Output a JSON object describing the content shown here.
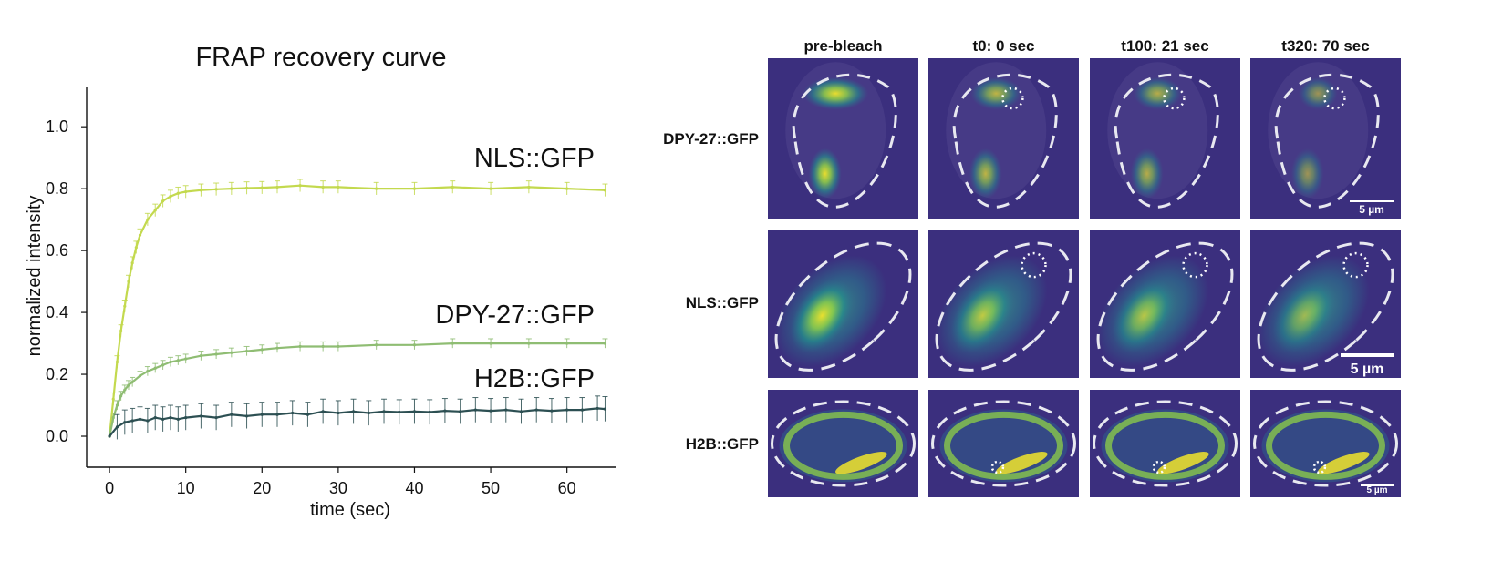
{
  "chart_data": {
    "type": "line",
    "title": "FRAP recovery curve",
    "xlabel": "time (sec)",
    "ylabel": "normalized intensity",
    "xlim": [
      -3,
      66.5
    ],
    "ylim": [
      -0.1,
      1.13
    ],
    "xticks": [
      0,
      10,
      20,
      30,
      40,
      50,
      60
    ],
    "yticks": [
      "0.0",
      "0.2",
      "0.4",
      "0.6",
      "0.8",
      "1.0"
    ],
    "grid": false,
    "legend": "none",
    "series": [
      {
        "name": "NLS::GFP",
        "color": "#c3d94e",
        "x": [
          0,
          0.5,
          1,
          1.5,
          2,
          2.5,
          3,
          3.5,
          4,
          5,
          6,
          7,
          8,
          9,
          10,
          12,
          14,
          16,
          18,
          20,
          22,
          25,
          28,
          30,
          35,
          40,
          45,
          50,
          55,
          60,
          65
        ],
        "y": [
          0.0,
          0.12,
          0.24,
          0.34,
          0.42,
          0.5,
          0.56,
          0.61,
          0.65,
          0.7,
          0.73,
          0.76,
          0.775,
          0.785,
          0.79,
          0.795,
          0.798,
          0.8,
          0.802,
          0.803,
          0.805,
          0.81,
          0.805,
          0.805,
          0.8,
          0.8,
          0.805,
          0.8,
          0.805,
          0.8,
          0.795
        ],
        "err": 0.02
      },
      {
        "name": "DPY-27::GFP",
        "color": "#8fbd73",
        "x": [
          0,
          0.5,
          1,
          1.5,
          2,
          2.5,
          3,
          4,
          5,
          6,
          7,
          8,
          9,
          10,
          12,
          14,
          16,
          18,
          20,
          22,
          25,
          28,
          30,
          35,
          40,
          45,
          50,
          55,
          60,
          65
        ],
        "y": [
          0.0,
          0.06,
          0.1,
          0.13,
          0.15,
          0.165,
          0.175,
          0.195,
          0.21,
          0.22,
          0.23,
          0.24,
          0.245,
          0.25,
          0.26,
          0.265,
          0.27,
          0.275,
          0.28,
          0.285,
          0.29,
          0.29,
          0.29,
          0.295,
          0.295,
          0.3,
          0.3,
          0.3,
          0.3,
          0.3
        ],
        "err": 0.015
      },
      {
        "name": "H2B::GFP",
        "color": "#2c4f52",
        "x": [
          0,
          1,
          2,
          3,
          4,
          5,
          6,
          7,
          8,
          9,
          10,
          12,
          14,
          16,
          18,
          20,
          22,
          24,
          26,
          28,
          30,
          32,
          34,
          36,
          38,
          40,
          42,
          44,
          46,
          48,
          50,
          52,
          54,
          56,
          58,
          60,
          62,
          64,
          65
        ],
        "y": [
          0.0,
          0.03,
          0.045,
          0.05,
          0.055,
          0.05,
          0.06,
          0.055,
          0.06,
          0.055,
          0.06,
          0.065,
          0.06,
          0.07,
          0.065,
          0.07,
          0.07,
          0.075,
          0.07,
          0.08,
          0.075,
          0.08,
          0.075,
          0.08,
          0.078,
          0.08,
          0.078,
          0.082,
          0.08,
          0.085,
          0.082,
          0.085,
          0.08,
          0.085,
          0.082,
          0.085,
          0.085,
          0.09,
          0.088
        ],
        "err": 0.04
      }
    ]
  },
  "panel": {
    "columns": [
      "pre-bleach",
      "t0: 0 sec",
      "t100: 21 sec",
      "t320: 70 sec"
    ],
    "rows": [
      "DPY-27::GFP",
      "NLS::GFP",
      "H2B::GFP"
    ],
    "scale_labels": [
      "5 µm",
      "5 µm",
      "5 µm"
    ]
  }
}
